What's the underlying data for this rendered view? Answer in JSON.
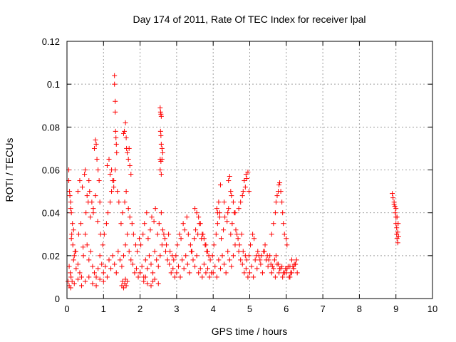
{
  "chart_data": {
    "type": "scatter",
    "title": "Day 174 of 2011, Rate Of TEC Index for receiver lpal",
    "xlabel": "GPS time / hours",
    "ylabel": "ROTI / TECUs",
    "xlim": [
      0,
      10
    ],
    "ylim": [
      0,
      0.12
    ],
    "xticks": [
      0,
      1,
      2,
      3,
      4,
      5,
      6,
      7,
      8,
      9,
      10
    ],
    "yticks": [
      0,
      0.02,
      0.04,
      0.06,
      0.08,
      0.1,
      0.12
    ],
    "xtick_labels": [
      "0",
      "1",
      "2",
      "3",
      "4",
      "5",
      "6",
      "7",
      "8",
      "9",
      "10"
    ],
    "ytick_labels": [
      "0",
      "0.02",
      "0.04",
      "0.06",
      "0.08",
      "0.1",
      "0.12"
    ],
    "grid": true,
    "marker": "plus",
    "color": "#ff0000",
    "series": [
      {
        "x": [
          0.05,
          0.08,
          0.1,
          0.12,
          0.15,
          0.05,
          0.07,
          0.1,
          0.13,
          0.16,
          0.2,
          0.06,
          0.09,
          0.11,
          0.14,
          0.18,
          0.22,
          0.25,
          0.3,
          0.35,
          0.4,
          0.45,
          0.5,
          0.55,
          0.6,
          0.65,
          0.7,
          0.75,
          0.8,
          0.85,
          0.9,
          0.95,
          0.03,
          0.06,
          0.1,
          0.2,
          0.3,
          0.4,
          0.5,
          0.6,
          0.7,
          0.8,
          0.9,
          1.0,
          0.12,
          0.18,
          0.24,
          0.32,
          0.38,
          0.44,
          0.52,
          0.58,
          0.64,
          0.72,
          0.78,
          0.84,
          0.92,
          0.98,
          0.3,
          0.35,
          0.42,
          0.48,
          0.5,
          0.55,
          0.6,
          0.62,
          0.68,
          0.72,
          0.75,
          0.78,
          0.8,
          0.82,
          0.85,
          0.88,
          0.9,
          1.0,
          1.05,
          1.1,
          1.15,
          1.2,
          1.25,
          1.3,
          1.35,
          1.4,
          1.45,
          1.5,
          1.55,
          1.6,
          1.65,
          1.7,
          1.75,
          1.8,
          1.85,
          1.9,
          1.95,
          2.0,
          1.02,
          1.08,
          1.12,
          1.18,
          1.22,
          1.28,
          1.32,
          1.38,
          1.42,
          1.48,
          1.52,
          1.58,
          1.62,
          1.68,
          1.72,
          1.78,
          1.82,
          1.88,
          1.92,
          1.98,
          1.3,
          1.3,
          1.32,
          1.32,
          1.33,
          1.34,
          1.35,
          1.36,
          1.55,
          1.57,
          1.6,
          1.62,
          1.63,
          1.65,
          1.68,
          1.7,
          1.72,
          1.75,
          1.5,
          1.52,
          1.55,
          1.58,
          1.6,
          1.62,
          1.65,
          1.1,
          1.15,
          1.18,
          1.22,
          1.25,
          1.28,
          2.0,
          2.05,
          2.1,
          2.15,
          2.2,
          2.25,
          2.3,
          2.35,
          2.4,
          2.45,
          2.5,
          2.55,
          2.6,
          2.65,
          2.7,
          2.75,
          2.8,
          2.85,
          2.9,
          2.95,
          2.02,
          2.08,
          2.12,
          2.18,
          2.22,
          2.28,
          2.32,
          2.38,
          2.42,
          2.48,
          2.52,
          2.58,
          2.62,
          2.68,
          2.72,
          2.78,
          2.82,
          2.88,
          2.92,
          2.98,
          2.55,
          2.56,
          2.57,
          2.58,
          2.56,
          2.57,
          2.58,
          2.6,
          2.62,
          2.55,
          2.57,
          2.6,
          2.55,
          2.58,
          2.1,
          2.15,
          2.2,
          2.3,
          2.35,
          2.4,
          2.5,
          3.0,
          3.05,
          3.1,
          3.15,
          3.2,
          3.25,
          3.3,
          3.35,
          3.4,
          3.45,
          3.5,
          3.55,
          3.6,
          3.65,
          3.7,
          3.75,
          3.8,
          3.85,
          3.9,
          3.95,
          3.02,
          3.08,
          3.12,
          3.18,
          3.22,
          3.28,
          3.32,
          3.38,
          3.42,
          3.48,
          3.52,
          3.58,
          3.62,
          3.68,
          3.72,
          3.78,
          3.82,
          3.88,
          3.92,
          3.98,
          3.5,
          3.55,
          3.6,
          3.65,
          3.7,
          3.75,
          3.8,
          3.85,
          4.0,
          4.05,
          4.1,
          4.15,
          4.2,
          4.25,
          4.3,
          4.35,
          4.4,
          4.45,
          4.5,
          4.55,
          4.6,
          4.65,
          4.7,
          4.75,
          4.8,
          4.85,
          4.9,
          4.95,
          4.02,
          4.08,
          4.12,
          4.18,
          4.22,
          4.28,
          4.32,
          4.38,
          4.42,
          4.48,
          4.52,
          4.58,
          4.62,
          4.68,
          4.72,
          4.78,
          4.82,
          4.88,
          4.92,
          4.98,
          4.1,
          4.12,
          4.15,
          4.18,
          4.2,
          4.3,
          4.4,
          4.42,
          4.45,
          4.48,
          4.5,
          4.55,
          4.6,
          4.7,
          4.75,
          4.8,
          4.82,
          4.85,
          4.88,
          4.9,
          4.92,
          4.95,
          4.98,
          5.0,
          5.05,
          5.1,
          5.15,
          5.2,
          5.25,
          5.3,
          5.35,
          5.4,
          5.45,
          5.5,
          5.55,
          5.6,
          5.65,
          5.7,
          5.75,
          5.8,
          5.85,
          5.9,
          5.95,
          5.02,
          5.08,
          5.12,
          5.18,
          5.22,
          5.28,
          5.32,
          5.38,
          5.42,
          5.48,
          5.52,
          5.58,
          5.62,
          5.68,
          5.72,
          5.78,
          5.82,
          5.88,
          5.92,
          5.98,
          5.6,
          5.65,
          5.7,
          5.72,
          5.75,
          5.78,
          5.8,
          5.82,
          5.85,
          5.88,
          5.9,
          5.92,
          5.95,
          6.0,
          6.02,
          6.0,
          6.05,
          6.1,
          6.15,
          6.2,
          6.25,
          6.3,
          6.02,
          6.08,
          6.12,
          6.18,
          6.22,
          6.28,
          6.1,
          6.15,
          6.2,
          6.25,
          8.9,
          8.92,
          8.95,
          8.97,
          8.98,
          9.0,
          9.0,
          9.02,
          9.02,
          9.03,
          9.05,
          9.05,
          9.06,
          9.07,
          8.95,
          9.0,
          9.03
        ],
        "y": [
          0.055,
          0.048,
          0.045,
          0.04,
          0.035,
          0.06,
          0.05,
          0.042,
          0.03,
          0.025,
          0.02,
          0.015,
          0.012,
          0.01,
          0.008,
          0.018,
          0.022,
          0.014,
          0.016,
          0.012,
          0.01,
          0.02,
          0.03,
          0.025,
          0.018,
          0.022,
          0.015,
          0.012,
          0.01,
          0.014,
          0.02,
          0.016,
          0.008,
          0.006,
          0.005,
          0.007,
          0.009,
          0.006,
          0.008,
          0.01,
          0.007,
          0.006,
          0.009,
          0.008,
          0.028,
          0.032,
          0.022,
          0.03,
          0.035,
          0.024,
          0.04,
          0.045,
          0.038,
          0.042,
          0.048,
          0.036,
          0.03,
          0.025,
          0.05,
          0.055,
          0.052,
          0.058,
          0.06,
          0.048,
          0.055,
          0.05,
          0.045,
          0.04,
          0.07,
          0.074,
          0.072,
          0.065,
          0.06,
          0.055,
          0.045,
          0.012,
          0.015,
          0.01,
          0.018,
          0.014,
          0.02,
          0.016,
          0.012,
          0.022,
          0.018,
          0.015,
          0.02,
          0.025,
          0.03,
          0.022,
          0.018,
          0.016,
          0.012,
          0.014,
          0.01,
          0.012,
          0.03,
          0.035,
          0.04,
          0.045,
          0.05,
          0.055,
          0.06,
          0.05,
          0.045,
          0.035,
          0.04,
          0.045,
          0.05,
          0.042,
          0.038,
          0.035,
          0.03,
          0.025,
          0.022,
          0.028,
          0.104,
          0.1,
          0.092,
          0.087,
          0.078,
          0.075,
          0.072,
          0.068,
          0.077,
          0.078,
          0.082,
          0.075,
          0.07,
          0.068,
          0.065,
          0.07,
          0.062,
          0.058,
          0.006,
          0.008,
          0.005,
          0.007,
          0.009,
          0.006,
          0.008,
          0.062,
          0.065,
          0.058,
          0.06,
          0.055,
          0.052,
          0.012,
          0.015,
          0.01,
          0.018,
          0.014,
          0.02,
          0.016,
          0.012,
          0.022,
          0.018,
          0.015,
          0.02,
          0.025,
          0.03,
          0.022,
          0.018,
          0.016,
          0.012,
          0.014,
          0.01,
          0.025,
          0.03,
          0.035,
          0.04,
          0.028,
          0.032,
          0.038,
          0.036,
          0.042,
          0.03,
          0.035,
          0.04,
          0.032,
          0.028,
          0.025,
          0.03,
          0.022,
          0.02,
          0.018,
          0.02,
          0.089,
          0.087,
          0.086,
          0.085,
          0.078,
          0.076,
          0.072,
          0.07,
          0.068,
          0.065,
          0.064,
          0.065,
          0.06,
          0.058,
          0.008,
          0.01,
          0.007,
          0.006,
          0.008,
          0.009,
          0.007,
          0.012,
          0.015,
          0.01,
          0.018,
          0.014,
          0.02,
          0.016,
          0.012,
          0.022,
          0.018,
          0.015,
          0.02,
          0.012,
          0.014,
          0.01,
          0.016,
          0.012,
          0.014,
          0.01,
          0.012,
          0.025,
          0.03,
          0.028,
          0.035,
          0.032,
          0.038,
          0.03,
          0.025,
          0.022,
          0.028,
          0.032,
          0.03,
          0.035,
          0.028,
          0.03,
          0.025,
          0.022,
          0.02,
          0.018,
          0.02,
          0.042,
          0.04,
          0.038,
          0.035,
          0.03,
          0.028,
          0.025,
          0.022,
          0.012,
          0.015,
          0.01,
          0.018,
          0.014,
          0.02,
          0.016,
          0.012,
          0.022,
          0.018,
          0.015,
          0.02,
          0.025,
          0.03,
          0.022,
          0.018,
          0.016,
          0.012,
          0.014,
          0.01,
          0.025,
          0.03,
          0.035,
          0.04,
          0.028,
          0.032,
          0.038,
          0.036,
          0.042,
          0.03,
          0.035,
          0.04,
          0.032,
          0.028,
          0.025,
          0.03,
          0.022,
          0.02,
          0.018,
          0.02,
          0.042,
          0.04,
          0.045,
          0.038,
          0.053,
          0.045,
          0.04,
          0.055,
          0.057,
          0.05,
          0.048,
          0.045,
          0.04,
          0.042,
          0.045,
          0.048,
          0.05,
          0.055,
          0.052,
          0.058,
          0.056,
          0.059,
          0.05,
          0.012,
          0.015,
          0.01,
          0.018,
          0.014,
          0.02,
          0.016,
          0.012,
          0.022,
          0.018,
          0.015,
          0.02,
          0.012,
          0.014,
          0.01,
          0.016,
          0.012,
          0.014,
          0.01,
          0.012,
          0.025,
          0.03,
          0.028,
          0.02,
          0.022,
          0.018,
          0.02,
          0.022,
          0.025,
          0.02,
          0.018,
          0.016,
          0.015,
          0.018,
          0.02,
          0.016,
          0.014,
          0.015,
          0.012,
          0.014,
          0.03,
          0.035,
          0.04,
          0.045,
          0.048,
          0.05,
          0.053,
          0.054,
          0.05,
          0.045,
          0.04,
          0.035,
          0.03,
          0.028,
          0.025,
          0.012,
          0.015,
          0.01,
          0.018,
          0.014,
          0.016,
          0.012,
          0.014,
          0.01,
          0.012,
          0.015,
          0.016,
          0.018,
          0.015,
          0.012,
          0.014,
          0.016,
          0.049,
          0.047,
          0.045,
          0.043,
          0.04,
          0.038,
          0.035,
          0.033,
          0.03,
          0.028,
          0.026,
          0.031,
          0.035,
          0.029,
          0.044,
          0.042,
          0.038
        ]
      }
    ]
  }
}
